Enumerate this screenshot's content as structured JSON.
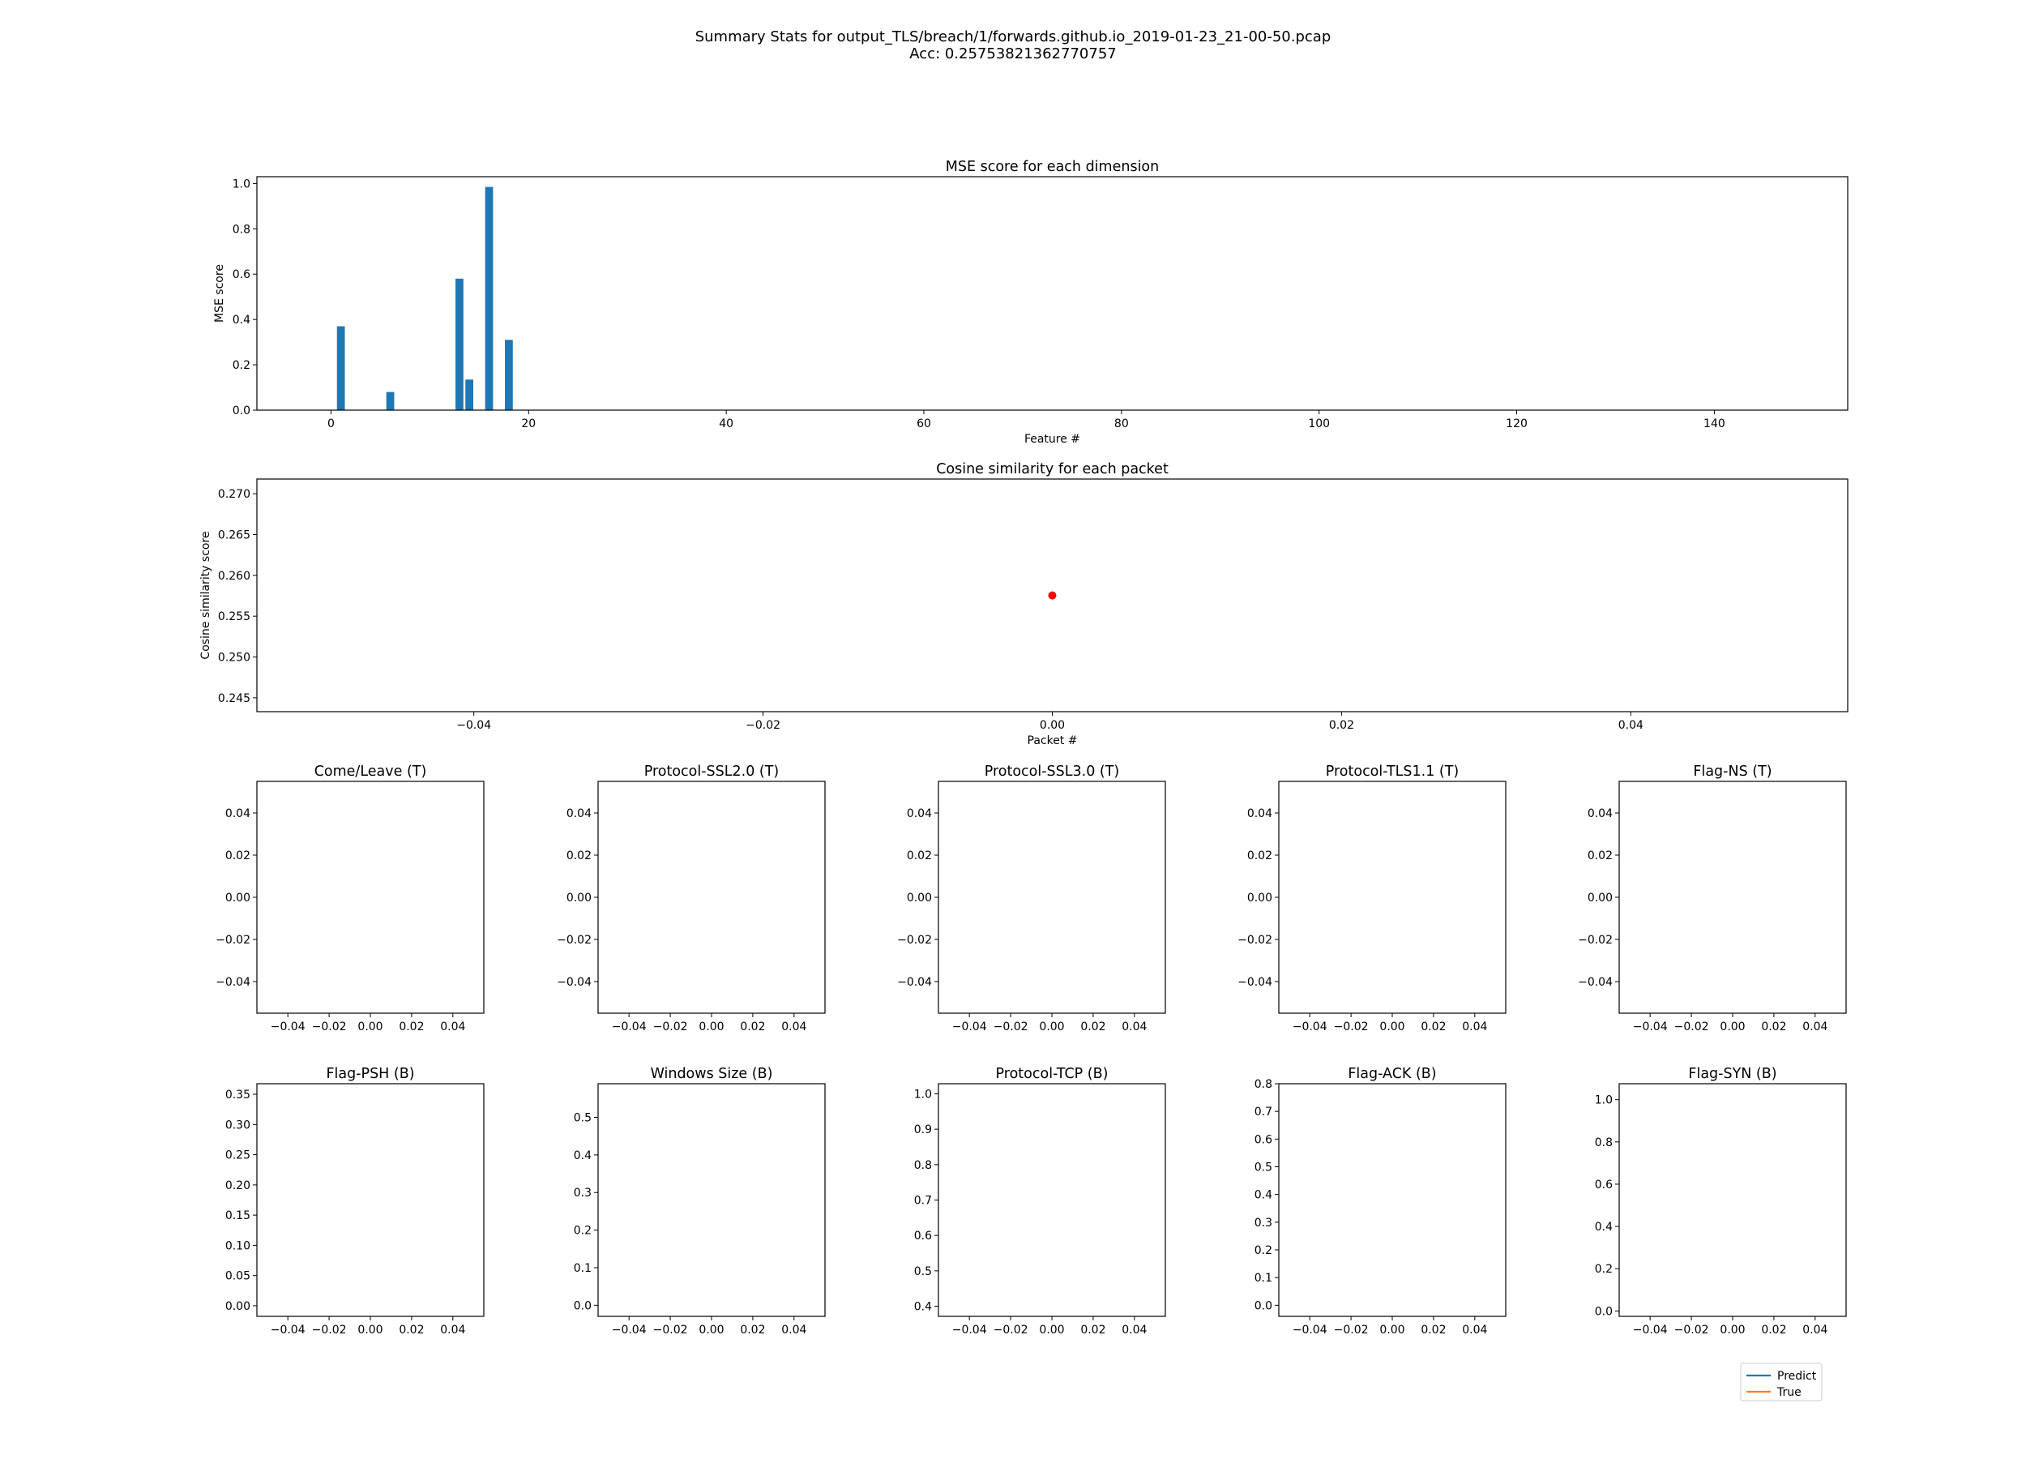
{
  "figure": {
    "title_line1": "Summary Stats for output_TLS/breach/1/forwards.github.io_2019-01-23_21-00-50.pcap",
    "title_line2": "Acc: 0.25753821362770757"
  },
  "colors": {
    "bar": "#1f77b4",
    "point": "#ff0000",
    "predict": "#1f77b4",
    "true": "#ff7f0e"
  },
  "legend": {
    "placement": "lower-right",
    "entries": [
      "Predict",
      "True"
    ]
  },
  "chart_data": [
    {
      "id": "mse",
      "type": "bar",
      "title": "MSE score for each dimension",
      "xlabel": "Feature #",
      "ylabel": "MSE score",
      "xlim": [
        -7.5,
        153.5
      ],
      "ylim": [
        0,
        1.03
      ],
      "xticks": [
        0,
        20,
        40,
        60,
        80,
        100,
        120,
        140
      ],
      "yticks": [
        0.0,
        0.2,
        0.4,
        0.6,
        0.8,
        1.0
      ],
      "bar_width": 0.8,
      "x": [
        1,
        6,
        13,
        14,
        16,
        18
      ],
      "values": [
        0.37,
        0.08,
        0.58,
        0.135,
        0.985,
        0.31
      ]
    },
    {
      "id": "cosine",
      "type": "scatter",
      "title": "Cosine similarity for each packet",
      "xlabel": "Packet #",
      "ylabel": "Cosine similarity score",
      "xlim": [
        -0.055,
        0.055
      ],
      "ylim": [
        0.2433,
        0.2718
      ],
      "xticks": [
        -0.04,
        -0.02,
        0.0,
        0.02,
        0.04
      ],
      "yticks": [
        0.245,
        0.25,
        0.255,
        0.26,
        0.265,
        0.27
      ],
      "points": [
        {
          "x": 0.0,
          "y": 0.25753821362770757
        }
      ]
    },
    {
      "id": "s1",
      "type": "line",
      "title": "Come/Leave (T)",
      "xlim": [
        -0.055,
        0.055
      ],
      "ylim": [
        -0.055,
        0.055
      ],
      "xticks": [
        -0.04,
        -0.02,
        0.0,
        0.02,
        0.04
      ],
      "yticks": [
        -0.04,
        -0.02,
        0.0,
        0.02,
        0.04
      ],
      "series": []
    },
    {
      "id": "s2",
      "type": "line",
      "title": "Protocol-SSL2.0 (T)",
      "xlim": [
        -0.055,
        0.055
      ],
      "ylim": [
        -0.055,
        0.055
      ],
      "xticks": [
        -0.04,
        -0.02,
        0.0,
        0.02,
        0.04
      ],
      "yticks": [
        -0.04,
        -0.02,
        0.0,
        0.02,
        0.04
      ],
      "series": []
    },
    {
      "id": "s3",
      "type": "line",
      "title": "Protocol-SSL3.0 (T)",
      "xlim": [
        -0.055,
        0.055
      ],
      "ylim": [
        -0.055,
        0.055
      ],
      "xticks": [
        -0.04,
        -0.02,
        0.0,
        0.02,
        0.04
      ],
      "yticks": [
        -0.04,
        -0.02,
        0.0,
        0.02,
        0.04
      ],
      "series": []
    },
    {
      "id": "s4",
      "type": "line",
      "title": "Protocol-TLS1.1 (T)",
      "xlim": [
        -0.055,
        0.055
      ],
      "ylim": [
        -0.055,
        0.055
      ],
      "xticks": [
        -0.04,
        -0.02,
        0.0,
        0.02,
        0.04
      ],
      "yticks": [
        -0.04,
        -0.02,
        0.0,
        0.02,
        0.04
      ],
      "series": []
    },
    {
      "id": "s5",
      "type": "line",
      "title": "Flag-NS (T)",
      "xlim": [
        -0.055,
        0.055
      ],
      "ylim": [
        -0.055,
        0.055
      ],
      "xticks": [
        -0.04,
        -0.02,
        0.0,
        0.02,
        0.04
      ],
      "yticks": [
        -0.04,
        -0.02,
        0.0,
        0.02,
        0.04
      ],
      "series": []
    },
    {
      "id": "b1",
      "type": "line",
      "title": "Flag-PSH (B)",
      "xlim": [
        -0.055,
        0.055
      ],
      "ylim": [
        -0.0175,
        0.3675
      ],
      "xticks": [
        -0.04,
        -0.02,
        0.0,
        0.02,
        0.04
      ],
      "yticks": [
        0.0,
        0.05,
        0.1,
        0.15,
        0.2,
        0.25,
        0.3,
        0.35
      ],
      "series": []
    },
    {
      "id": "b2",
      "type": "line",
      "title": "Windows Size (B)",
      "xlim": [
        -0.055,
        0.055
      ],
      "ylim": [
        -0.0295,
        0.5895
      ],
      "xticks": [
        -0.04,
        -0.02,
        0.0,
        0.02,
        0.04
      ],
      "yticks": [
        0.0,
        0.1,
        0.2,
        0.3,
        0.4,
        0.5
      ],
      "series": []
    },
    {
      "id": "b3",
      "type": "line",
      "title": "Protocol-TCP (B)",
      "xlim": [
        -0.055,
        0.055
      ],
      "ylim": [
        0.3715,
        1.0285
      ],
      "xticks": [
        -0.04,
        -0.02,
        0.0,
        0.02,
        0.04
      ],
      "yticks": [
        0.4,
        0.5,
        0.6,
        0.7,
        0.8,
        0.9,
        1.0
      ],
      "series": []
    },
    {
      "id": "b4",
      "type": "line",
      "title": "Flag-ACK (B)",
      "xlim": [
        -0.055,
        0.055
      ],
      "ylim": [
        -0.04,
        0.8
      ],
      "xticks": [
        -0.04,
        -0.02,
        0.0,
        0.02,
        0.04
      ],
      "yticks": [
        0.0,
        0.1,
        0.2,
        0.3,
        0.4,
        0.5,
        0.6,
        0.7,
        0.8
      ],
      "series": []
    },
    {
      "id": "b5",
      "type": "line",
      "title": "Flag-SYN (B)",
      "xlim": [
        -0.055,
        0.055
      ],
      "ylim": [
        -0.0255,
        1.0755
      ],
      "xticks": [
        -0.04,
        -0.02,
        0.0,
        0.02,
        0.04
      ],
      "yticks": [
        0.0,
        0.2,
        0.4,
        0.6,
        0.8,
        1.0
      ],
      "series": []
    }
  ]
}
